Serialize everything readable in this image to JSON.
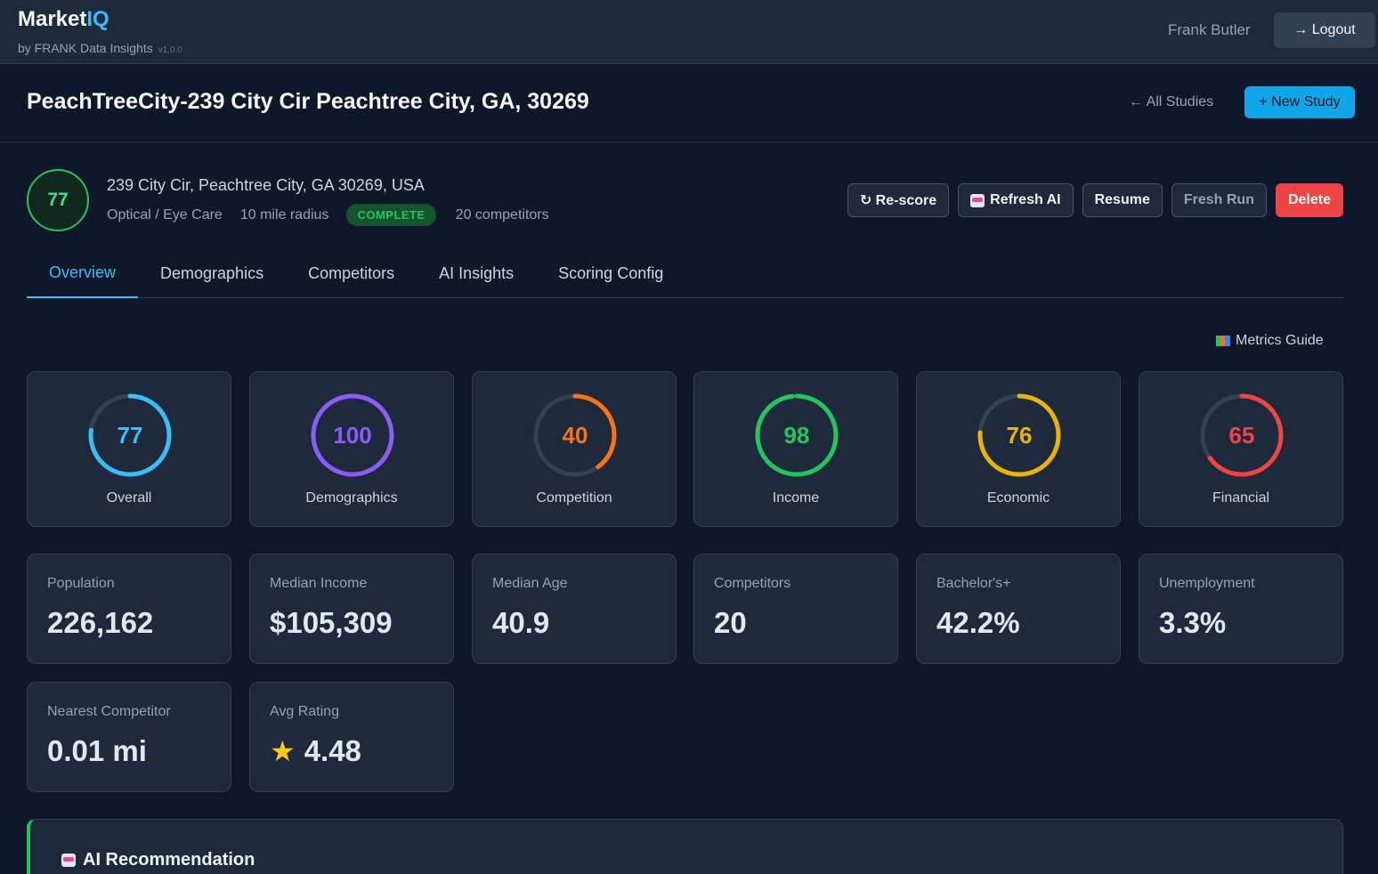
{
  "app": {
    "name_main": "Market",
    "name_accent": "IQ",
    "subtitle": "by FRANK Data Insights",
    "version": "v1.0.0",
    "user": "Frank Butler",
    "logout_label": "→ Logout"
  },
  "study": {
    "title": "PeachTreeCity-239 City Cir Peachtree City, GA, 30269",
    "all_studies_label": "← All Studies",
    "new_study_label": "+ New Study",
    "score": "77",
    "address": "239 City Cir, Peachtree City, GA 30269, USA",
    "category": "Optical / Eye Care",
    "radius": "10 mile radius",
    "status": "COMPLETE",
    "competitors_text": "20 competitors"
  },
  "actions": {
    "rescore": "↻ Re-score",
    "refresh_ai": "Refresh AI",
    "resume": "Resume",
    "fresh_run": "Fresh Run",
    "delete": "Delete"
  },
  "tabs": [
    "Overview",
    "Demographics",
    "Competitors",
    "AI Insights",
    "Scoring Config"
  ],
  "metrics_guide_label": "Metrics Guide",
  "scores": [
    {
      "label": "Overall",
      "value": "77",
      "percent": 77,
      "color": "#38bdf8"
    },
    {
      "label": "Demographics",
      "value": "100",
      "percent": 100,
      "color": "#8b5cf6"
    },
    {
      "label": "Competition",
      "value": "40",
      "percent": 40,
      "color": "#f97316"
    },
    {
      "label": "Income",
      "value": "98",
      "percent": 98,
      "color": "#22c55e"
    },
    {
      "label": "Economic",
      "value": "76",
      "percent": 76,
      "color": "#eab308"
    },
    {
      "label": "Financial",
      "value": "65",
      "percent": 65,
      "color": "#ef4444"
    }
  ],
  "stats": [
    {
      "label": "Population",
      "value": "226,162"
    },
    {
      "label": "Median Income",
      "value": "$105,309"
    },
    {
      "label": "Median Age",
      "value": "40.9"
    },
    {
      "label": "Competitors",
      "value": "20"
    },
    {
      "label": "Bachelor's+",
      "value": "42.2%"
    },
    {
      "label": "Unemployment",
      "value": "3.3%"
    },
    {
      "label": "Nearest Competitor",
      "value": "0.01 mi"
    },
    {
      "label": "Avg Rating",
      "value": "4.48"
    }
  ],
  "ai_recommendation": {
    "title": "AI Recommendation"
  },
  "colors": {
    "accent": "#38bdf8",
    "success": "#22c55e",
    "danger": "#ef4444",
    "background": "#0f172a",
    "card": "#1e293b"
  },
  "icons": {
    "rating": "star-icon",
    "refresh_ai": "robot-icon",
    "metrics_guide": "books-icon"
  }
}
